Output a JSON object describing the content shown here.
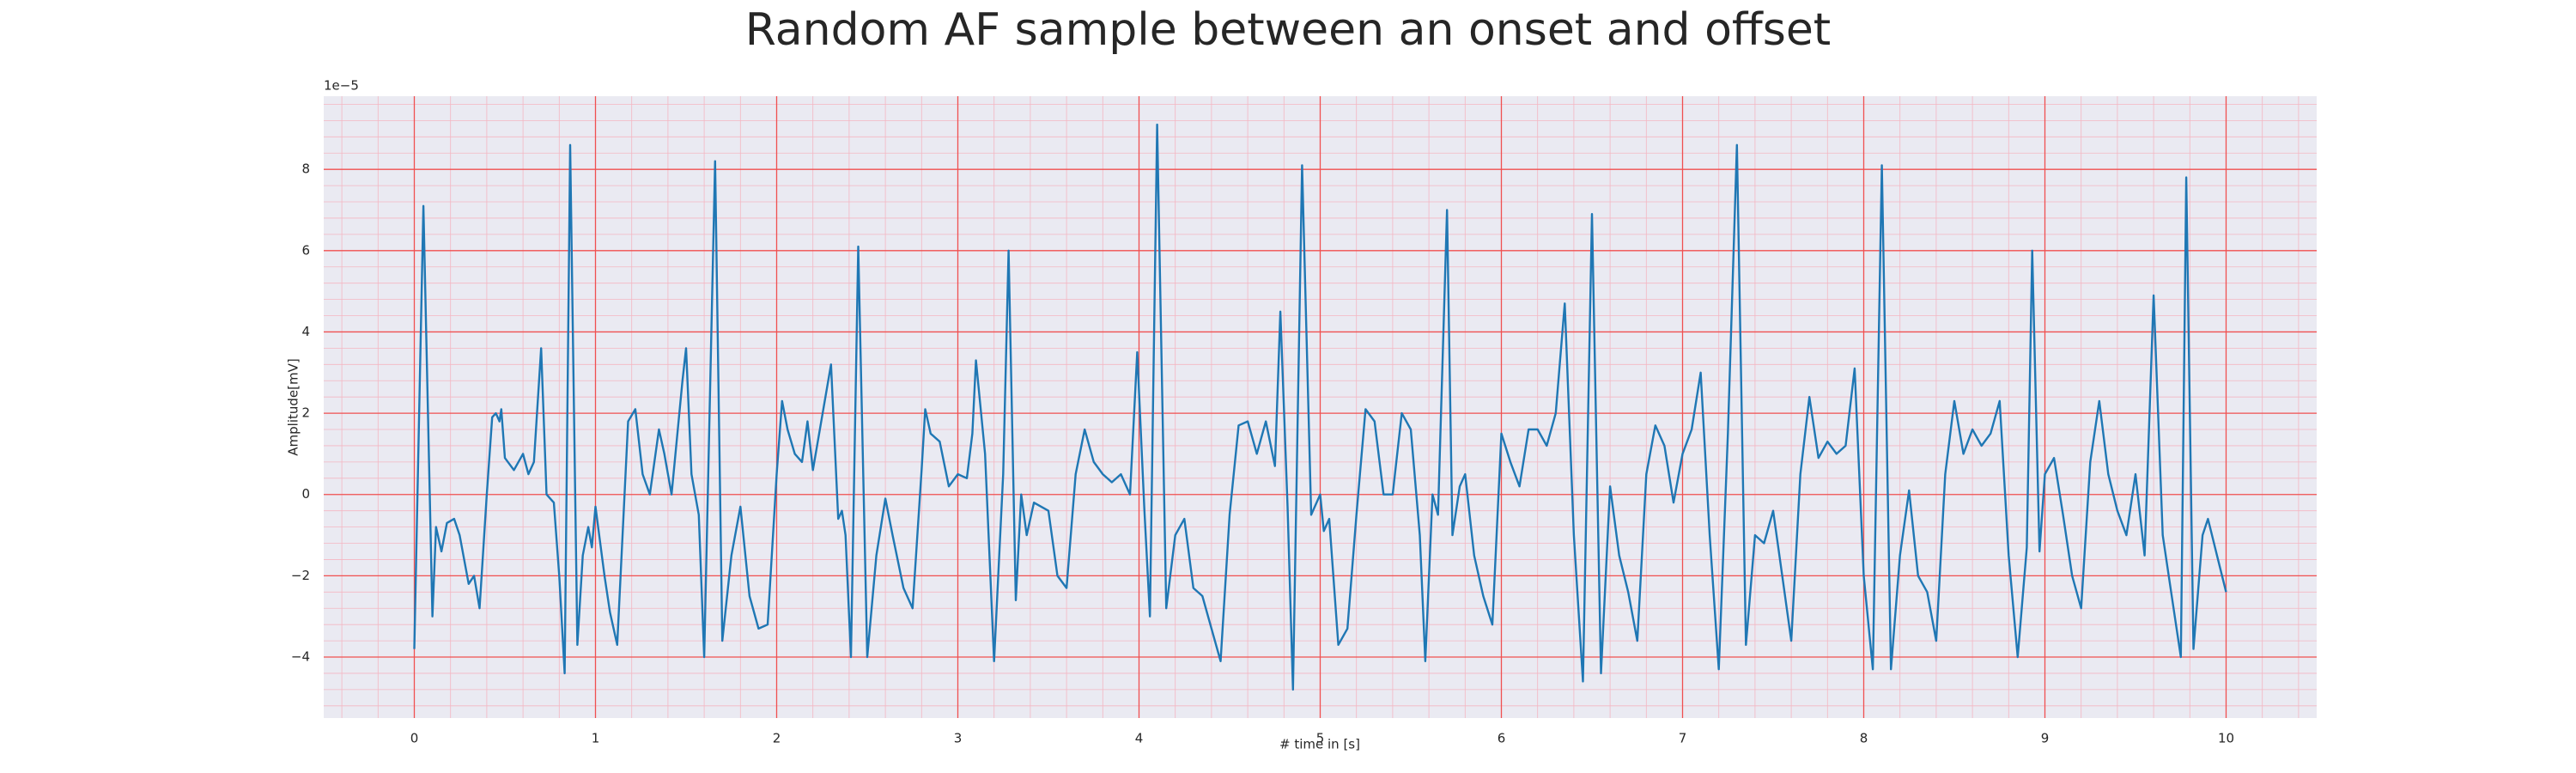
{
  "chart_data": {
    "type": "line",
    "title": "Random AF sample between an onset and offset",
    "xlabel": "# time in [s]",
    "ylabel": "Amplitude[mV]",
    "y_offset_label": "1e−5",
    "x": [
      0,
      0.05,
      0.1,
      0.12,
      0.15,
      0.18,
      0.22,
      0.25,
      0.3,
      0.33,
      0.36,
      0.4,
      0.43,
      0.45,
      0.47,
      0.48,
      0.5,
      0.55,
      0.6,
      0.63,
      0.66,
      0.7,
      0.73,
      0.77,
      0.8,
      0.83,
      0.86,
      0.9,
      0.93,
      0.96,
      0.98,
      1.0,
      1.05,
      1.08,
      1.12,
      1.18,
      1.22,
      1.26,
      1.3,
      1.35,
      1.38,
      1.42,
      1.48,
      1.5,
      1.53,
      1.57,
      1.6,
      1.62,
      1.66,
      1.7,
      1.75,
      1.8,
      1.85,
      1.9,
      1.95,
      2.0,
      2.03,
      2.06,
      2.1,
      2.14,
      2.17,
      2.2,
      2.3,
      2.34,
      2.36,
      2.38,
      2.41,
      2.45,
      2.5,
      2.55,
      2.6,
      2.64,
      2.7,
      2.75,
      2.8,
      2.82,
      2.85,
      2.9,
      2.95,
      3.0,
      3.05,
      3.08,
      3.1,
      3.15,
      3.2,
      3.25,
      3.28,
      3.32,
      3.35,
      3.38,
      3.42,
      3.5,
      3.55,
      3.6,
      3.65,
      3.7,
      3.75,
      3.8,
      3.85,
      3.9,
      3.95,
      3.99,
      4.03,
      4.06,
      4.1,
      4.15,
      4.2,
      4.25,
      4.3,
      4.35,
      4.4,
      4.45,
      4.5,
      4.55,
      4.6,
      4.65,
      4.7,
      4.75,
      4.78,
      4.82,
      4.85,
      4.9,
      4.95,
      5.0,
      5.02,
      5.05,
      5.1,
      5.15,
      5.2,
      5.25,
      5.3,
      5.35,
      5.4,
      5.45,
      5.5,
      5.55,
      5.58,
      5.62,
      5.65,
      5.7,
      5.73,
      5.77,
      5.8,
      5.85,
      5.9,
      5.95,
      6.0,
      6.05,
      6.1,
      6.15,
      6.2,
      6.25,
      6.3,
      6.35,
      6.4,
      6.45,
      6.5,
      6.55,
      6.6,
      6.65,
      6.7,
      6.75,
      6.8,
      6.85,
      6.9,
      6.95,
      7.0,
      7.05,
      7.1,
      7.15,
      7.2,
      7.25,
      7.3,
      7.35,
      7.4,
      7.45,
      7.5,
      7.55,
      7.6,
      7.65,
      7.7,
      7.75,
      7.8,
      7.85,
      7.9,
      7.95,
      8.0,
      8.05,
      8.1,
      8.15,
      8.2,
      8.25,
      8.3,
      8.35,
      8.4,
      8.45,
      8.5,
      8.55,
      8.6,
      8.65,
      8.7,
      8.75,
      8.8,
      8.85,
      8.9,
      8.93,
      8.97,
      9.0,
      9.05,
      9.1,
      9.15,
      9.2,
      9.25,
      9.3,
      9.35,
      9.4,
      9.45,
      9.5,
      9.55,
      9.6,
      9.65,
      9.7,
      9.75,
      9.78,
      9.82,
      9.87,
      9.9,
      9.95,
      10.0
    ],
    "values": [
      -3.8,
      7.1,
      -3.0,
      -0.8,
      -1.4,
      -0.7,
      -0.6,
      -1.0,
      -2.2,
      -2.0,
      -2.8,
      0.0,
      1.9,
      2.0,
      1.8,
      2.1,
      0.9,
      0.6,
      1.0,
      0.5,
      0.8,
      3.6,
      0.0,
      -0.2,
      -2.0,
      -4.4,
      8.6,
      -3.7,
      -1.5,
      -0.8,
      -1.3,
      -0.3,
      -2.0,
      -2.9,
      -3.7,
      1.8,
      2.1,
      0.5,
      0.0,
      1.6,
      1.0,
      0.0,
      2.8,
      3.6,
      0.5,
      -0.5,
      -4.0,
      0.0,
      8.2,
      -3.6,
      -1.5,
      -0.3,
      -2.5,
      -3.3,
      -3.2,
      0.5,
      2.3,
      1.6,
      1.0,
      0.8,
      1.8,
      0.6,
      3.2,
      -0.6,
      -0.4,
      -1.0,
      -4.0,
      6.1,
      -4.0,
      -1.5,
      -0.1,
      -1.0,
      -2.3,
      -2.8,
      0.6,
      2.1,
      1.5,
      1.3,
      0.2,
      0.5,
      0.4,
      1.5,
      3.3,
      1.0,
      -4.1,
      0.5,
      6.0,
      -2.6,
      0.0,
      -1.0,
      -0.2,
      -0.4,
      -2.0,
      -2.3,
      0.5,
      1.6,
      0.8,
      0.5,
      0.3,
      0.5,
      0.0,
      3.5,
      -0.4,
      -3.0,
      9.1,
      -2.8,
      -1.0,
      -0.6,
      -2.3,
      -2.5,
      -3.3,
      -4.1,
      -0.5,
      1.7,
      1.8,
      1.0,
      1.8,
      0.7,
      4.5,
      -0.3,
      -4.8,
      8.1,
      -0.5,
      0.0,
      -0.9,
      -0.6,
      -3.7,
      -3.3,
      -0.5,
      2.1,
      1.8,
      0.0,
      0.0,
      2.0,
      1.6,
      -1.0,
      -4.1,
      0.0,
      -0.5,
      7.0,
      -1.0,
      0.2,
      0.5,
      -1.5,
      -2.5,
      -3.2,
      1.5,
      0.8,
      0.2,
      1.6,
      1.6,
      1.2,
      2.0,
      4.7,
      -1.0,
      -4.6,
      6.9,
      -4.4,
      0.2,
      -1.5,
      -2.4,
      -3.6,
      0.5,
      1.7,
      1.2,
      -0.2,
      1.0,
      1.6,
      3.0,
      -1.0,
      -4.3,
      1.5,
      8.6,
      -3.7,
      -1.0,
      -1.2,
      -0.4,
      -2.0,
      -3.6,
      0.5,
      2.4,
      0.9,
      1.3,
      1.0,
      1.2,
      3.1,
      -2.0,
      -4.3,
      8.1,
      -4.3,
      -1.5,
      0.1,
      -2.0,
      -2.4,
      -3.6,
      0.5,
      2.3,
      1.0,
      1.6,
      1.2,
      1.5,
      2.3,
      -1.5,
      -4.0,
      -1.3,
      6.0,
      -1.4,
      0.5,
      0.9,
      -0.5,
      -2.0,
      -2.8,
      0.8,
      2.3,
      0.5,
      -0.4,
      -1.0,
      0.5,
      -1.5,
      4.9,
      -1.0,
      -2.5,
      -4.0,
      7.8,
      -3.8,
      -1.0,
      -0.6,
      -1.5,
      -2.4
    ],
    "color": "#1f77b4",
    "xlim": [
      -0.5,
      10.5
    ],
    "xticks": [
      0,
      1,
      2,
      3,
      4,
      5,
      6,
      7,
      8,
      9,
      10
    ],
    "ylim": [
      -5.5,
      9.8
    ],
    "yticks": [
      {
        "value": -4,
        "label": "−4"
      },
      {
        "value": -2,
        "label": "−2"
      },
      0,
      2,
      4,
      6,
      8
    ],
    "grid": true,
    "minor_grid": true
  }
}
